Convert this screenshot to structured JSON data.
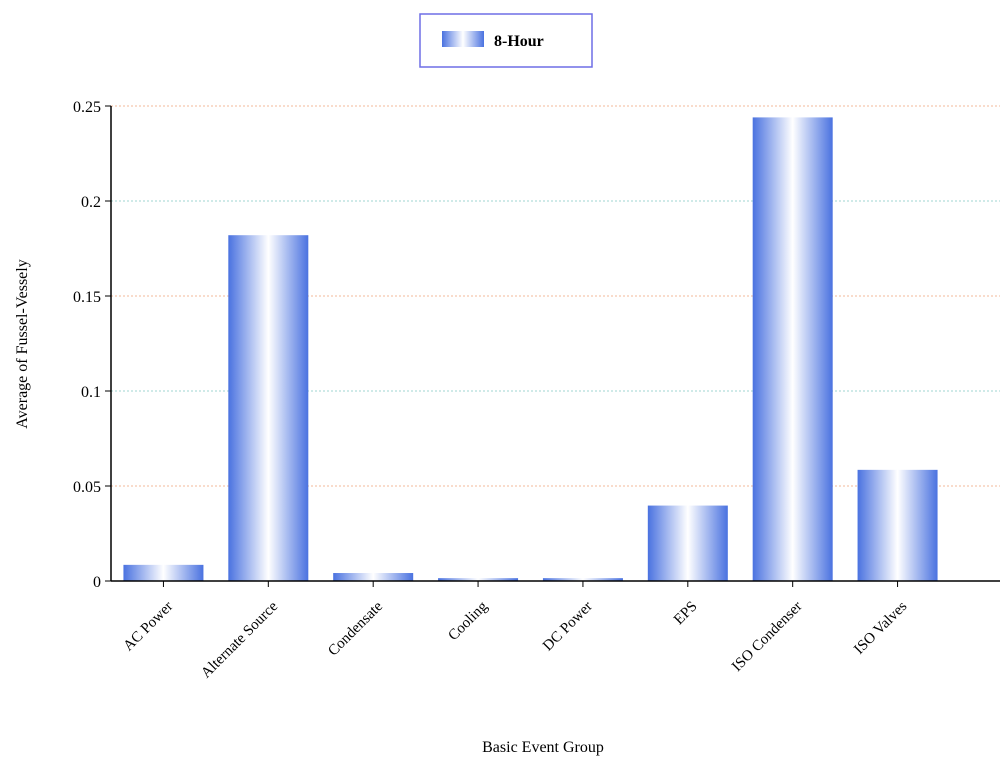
{
  "chart_data": {
    "type": "bar",
    "title": "",
    "xlabel": "Basic Event Group",
    "ylabel": "Average of Fussel-Vessely",
    "categories": [
      "AC Power",
      "Alternate Source",
      "Condensate",
      "Cooling",
      "DC Power",
      "EPS",
      "ISO Condenser",
      "ISO Valves"
    ],
    "series": [
      {
        "name": "8-Hour",
        "values": [
          0.0085,
          0.182,
          0.0042,
          0.0015,
          0.0015,
          0.0397,
          0.244,
          0.0585
        ]
      }
    ],
    "ylim": [
      0,
      0.25
    ],
    "yticks": [
      0,
      0.05,
      0.1,
      0.15,
      0.2,
      0.25
    ],
    "ytick_labels": [
      "0",
      "0.05",
      "0.1",
      "0.15",
      "0.2",
      "0.25"
    ],
    "grid": true,
    "legend_position": "top-center",
    "colors": {
      "bar_dark": "#4a72e0",
      "bar_light": "#ffffff",
      "grid_major": "#f3b99a",
      "grid_minor": "#9fd6d0",
      "legend_border": "#6e6ee6",
      "axis": "#000000"
    }
  }
}
